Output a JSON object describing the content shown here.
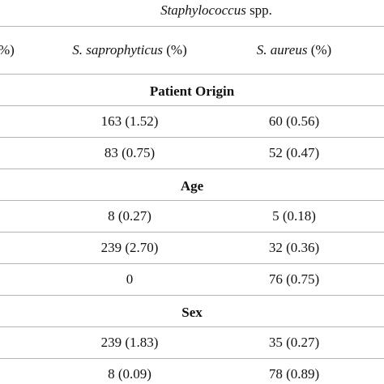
{
  "header": {
    "group_title": {
      "italic": "Staphylococcus",
      "text": "spp."
    },
    "columns": [
      {
        "text": "%)"
      },
      {
        "italic": "S. saprophyticus",
        "text": "(%)"
      },
      {
        "italic": "S. aureus",
        "text": "(%)"
      }
    ]
  },
  "sections": [
    {
      "title": "Patient Origin",
      "rows": [
        [
          "163 (1.52)",
          "60 (0.56)"
        ],
        [
          "83 (0.75)",
          "52 (0.47)"
        ]
      ]
    },
    {
      "title": "Age",
      "rows": [
        [
          "8 (0.27)",
          "5 (0.18)"
        ],
        [
          "239 (2.70)",
          "32 (0.36)"
        ],
        [
          "0",
          "76 (0.75)"
        ]
      ]
    },
    {
      "title": "Sex",
      "rows": [
        [
          "239 (1.83)",
          "35 (0.27)"
        ],
        [
          "8 (0.09)",
          "78 (0.89)"
        ]
      ]
    }
  ]
}
